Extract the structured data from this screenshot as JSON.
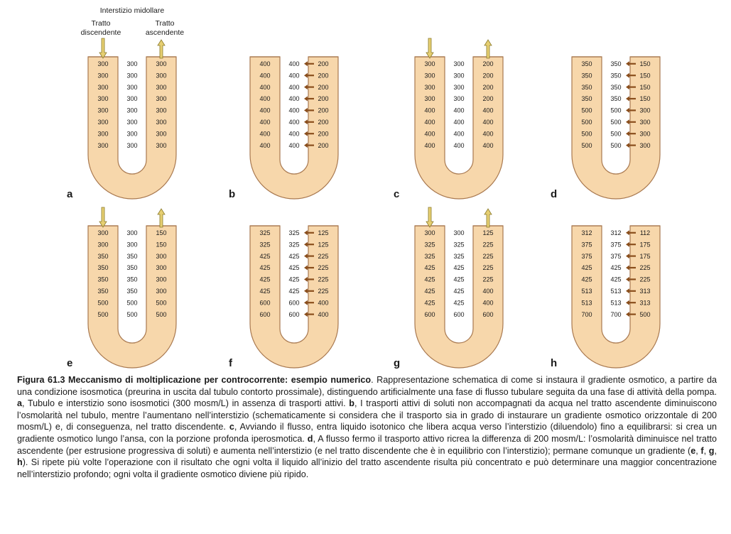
{
  "header": {
    "interstitium_label": "Interstizio midollare",
    "descending_label": [
      "Tratto",
      "discendente"
    ],
    "ascending_label": [
      "Tratto",
      "ascendente"
    ]
  },
  "colors": {
    "tubule_fill": "#f7d7ab",
    "tubule_stroke": "#a8784f",
    "pump_arrow": "#8a4e1c",
    "flow_arrow_fill": "#e6cf72",
    "flow_arrow_stroke": "#8a7a2a"
  },
  "panels": [
    {
      "label": "a",
      "flow": true,
      "pumps": false,
      "desc": [
        "300",
        "300",
        "300",
        "300",
        "300",
        "300",
        "300",
        "300"
      ],
      "inter": [
        "300",
        "300",
        "300",
        "300",
        "300",
        "300",
        "300",
        "300"
      ],
      "asc": [
        "300",
        "300",
        "300",
        "300",
        "300",
        "300",
        "300",
        "300"
      ]
    },
    {
      "label": "b",
      "flow": false,
      "pumps": true,
      "desc": [
        "400",
        "400",
        "400",
        "400",
        "400",
        "400",
        "400",
        "400"
      ],
      "inter": [
        "400",
        "400",
        "400",
        "400",
        "400",
        "400",
        "400",
        "400"
      ],
      "asc": [
        "200",
        "200",
        "200",
        "200",
        "200",
        "200",
        "200",
        "200"
      ]
    },
    {
      "label": "c",
      "flow": true,
      "pumps": false,
      "desc": [
        "300",
        "300",
        "300",
        "300",
        "400",
        "400",
        "400",
        "400"
      ],
      "inter": [
        "300",
        "300",
        "300",
        "300",
        "400",
        "400",
        "400",
        "400"
      ],
      "asc": [
        "200",
        "200",
        "200",
        "200",
        "400",
        "400",
        "400",
        "400"
      ]
    },
    {
      "label": "d",
      "flow": false,
      "pumps": true,
      "desc": [
        "350",
        "350",
        "350",
        "350",
        "500",
        "500",
        "500",
        "500"
      ],
      "inter": [
        "350",
        "350",
        "350",
        "350",
        "500",
        "500",
        "500",
        "500"
      ],
      "asc": [
        "150",
        "150",
        "150",
        "150",
        "300",
        "300",
        "300",
        "300"
      ]
    },
    {
      "label": "e",
      "flow": true,
      "pumps": false,
      "desc": [
        "300",
        "300",
        "350",
        "350",
        "350",
        "350",
        "500",
        "500"
      ],
      "inter": [
        "300",
        "300",
        "350",
        "350",
        "350",
        "350",
        "500",
        "500"
      ],
      "asc": [
        "150",
        "150",
        "300",
        "300",
        "300",
        "300",
        "500",
        "500"
      ]
    },
    {
      "label": "f",
      "flow": false,
      "pumps": true,
      "desc": [
        "325",
        "325",
        "425",
        "425",
        "425",
        "425",
        "600",
        "600"
      ],
      "inter": [
        "325",
        "325",
        "425",
        "425",
        "425",
        "425",
        "600",
        "600"
      ],
      "asc": [
        "125",
        "125",
        "225",
        "225",
        "225",
        "225",
        "400",
        "400"
      ]
    },
    {
      "label": "g",
      "flow": true,
      "pumps": false,
      "desc": [
        "300",
        "325",
        "325",
        "425",
        "425",
        "425",
        "425",
        "600"
      ],
      "inter": [
        "300",
        "325",
        "325",
        "425",
        "425",
        "425",
        "425",
        "600"
      ],
      "asc": [
        "125",
        "225",
        "225",
        "225",
        "225",
        "400",
        "400",
        "600"
      ]
    },
    {
      "label": "h",
      "flow": false,
      "pumps": true,
      "desc": [
        "312",
        "375",
        "375",
        "425",
        "425",
        "513",
        "513",
        "700"
      ],
      "inter": [
        "312",
        "375",
        "375",
        "425",
        "425",
        "513",
        "513",
        "700"
      ],
      "asc": [
        "112",
        "175",
        "175",
        "225",
        "225",
        "313",
        "313",
        "500"
      ]
    }
  ],
  "caption": {
    "title": "Figura 61.3   Meccanismo di moltiplicazione per controcorrente: esempio numerico",
    "segments": [
      {
        "t": ". Rappresentazione schematica di come si instaura il gradiente osmotico, a partire da una condizione isosmotica (preurina in uscita dal tubulo contorto prossimale), distinguendo artificialmente una fase di flusso tubulare seguita da una fase di attività della pompa. "
      },
      {
        "t": "a",
        "b": true
      },
      {
        "t": ", Tubulo e interstizio sono isosmotici (300 mosm/L) in assenza di trasporti attivi. "
      },
      {
        "t": "b",
        "b": true
      },
      {
        "t": ", I trasporti attivi di soluti non accompagnati da acqua nel tratto ascendente diminuiscono l’osmolarità nel tubulo, mentre l’aumentano nell’interstizio (schematicamente si considera che il trasporto sia in grado di instaurare un gradiente osmotico orizzontale di 200 mosm/L) e, di conseguenza, nel tratto discendente. "
      },
      {
        "t": "c",
        "b": true
      },
      {
        "t": ", Avviando il flusso, entra liquido isotonico che libera acqua verso l’interstizio (diluendolo) fino a equilibrarsi: si crea un gradiente osmotico lungo l’ansa, con la porzione profonda iperosmotica. "
      },
      {
        "t": "d",
        "b": true
      },
      {
        "t": ", A flusso fermo il trasporto attivo ricrea la differenza di 200 mosm/L: l’osmolarità diminuisce nel tratto ascendente (per estrusione progressiva di soluti) e aumenta nell’interstizio (e nel tratto discendente che è in equilibrio con l’interstizio); permane comunque un gradiente ("
      },
      {
        "t": "e",
        "b": true
      },
      {
        "t": ", "
      },
      {
        "t": "f",
        "b": true
      },
      {
        "t": ", "
      },
      {
        "t": "g",
        "b": true
      },
      {
        "t": ", "
      },
      {
        "t": "h",
        "b": true
      },
      {
        "t": "). Si ripete più volte l’operazione con il risultato che ogni volta il liquido all’inizio del tratto ascendente risulta più concentrato e può determinare una maggior concentrazione nell’interstizio profondo; ogni volta il gradiente osmotico diviene più ripido."
      }
    ]
  }
}
